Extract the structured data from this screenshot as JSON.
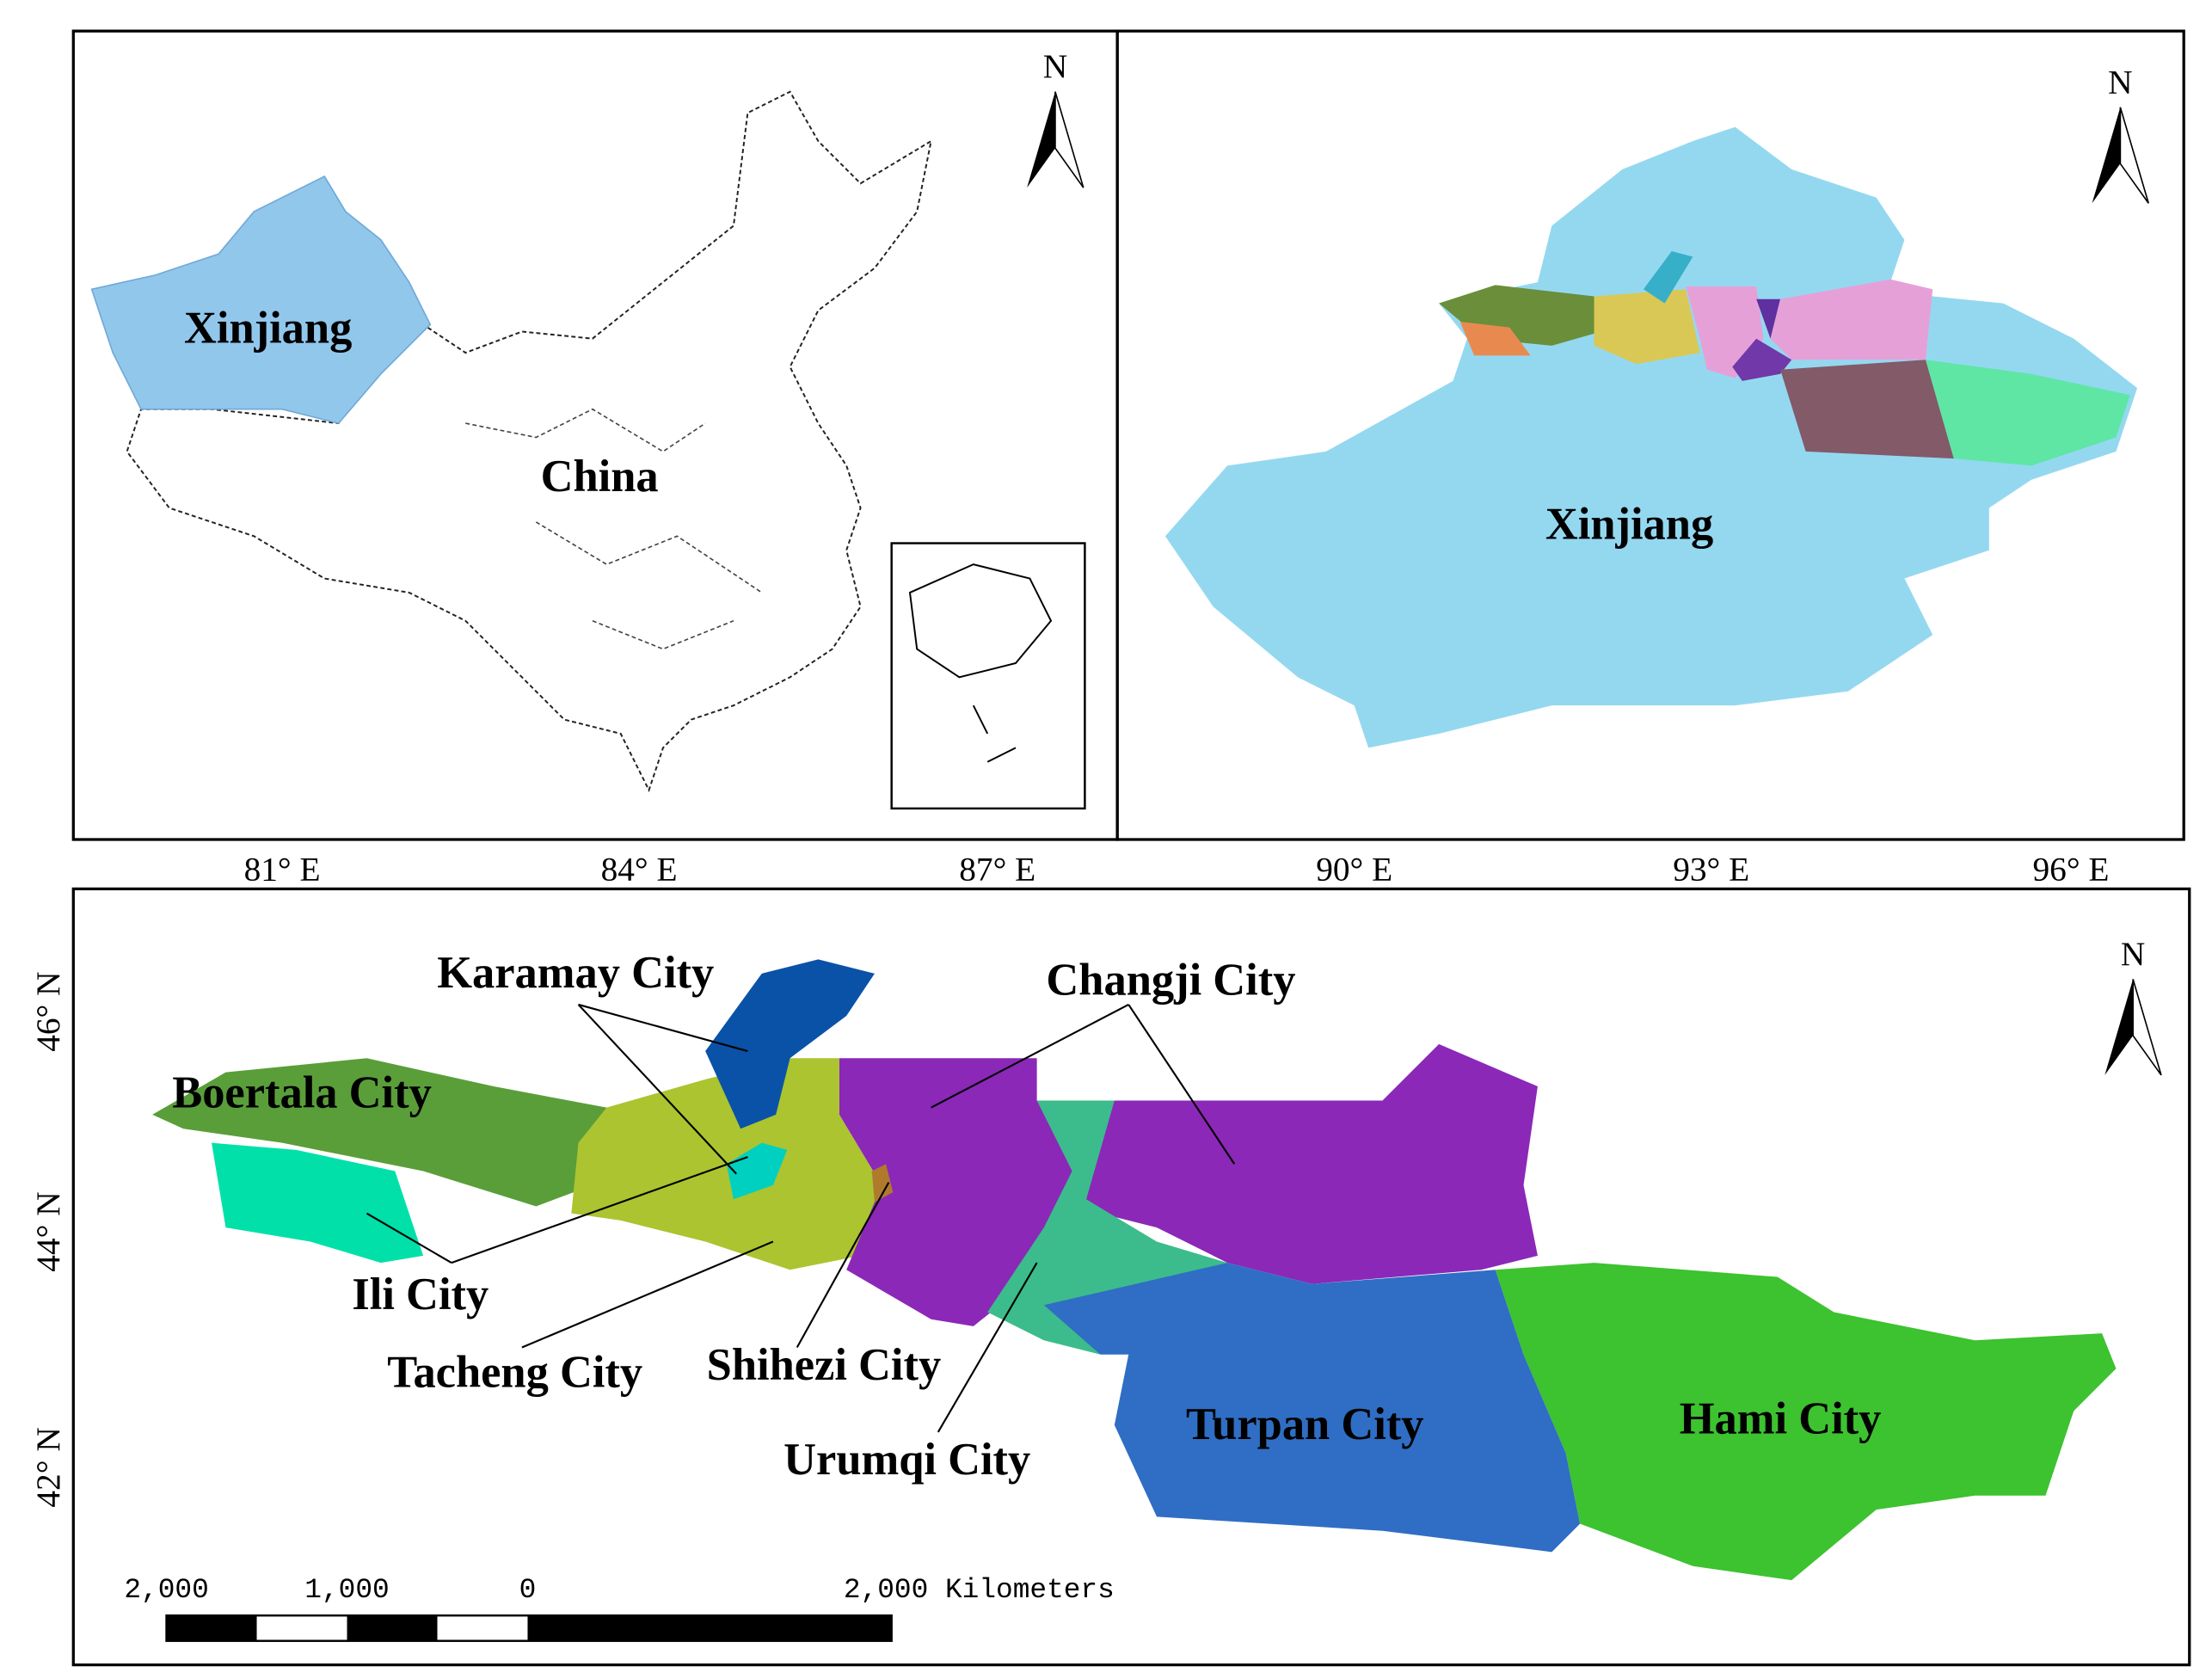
{
  "top_left": {
    "region": "Xinjiang",
    "country": "China",
    "north": "N"
  },
  "top_right": {
    "region": "Xinjiang",
    "north": "N"
  },
  "axes": {
    "longitude": [
      "81° E",
      "84° E",
      "87° E",
      "90° E",
      "93° E",
      "96° E"
    ],
    "latitude": [
      "46° N",
      "44° N",
      "42° N"
    ]
  },
  "bottom": {
    "north": "N",
    "cities": [
      "Karamay City",
      "Boertala City",
      "Changji City",
      "Ili City",
      "Tacheng City",
      "Shihezi City",
      "Urumqi City",
      "Turpan City",
      "Hami City"
    ],
    "scale_bar": [
      "2,000",
      "1,000",
      "0",
      "2,000 Kilometers"
    ]
  }
}
